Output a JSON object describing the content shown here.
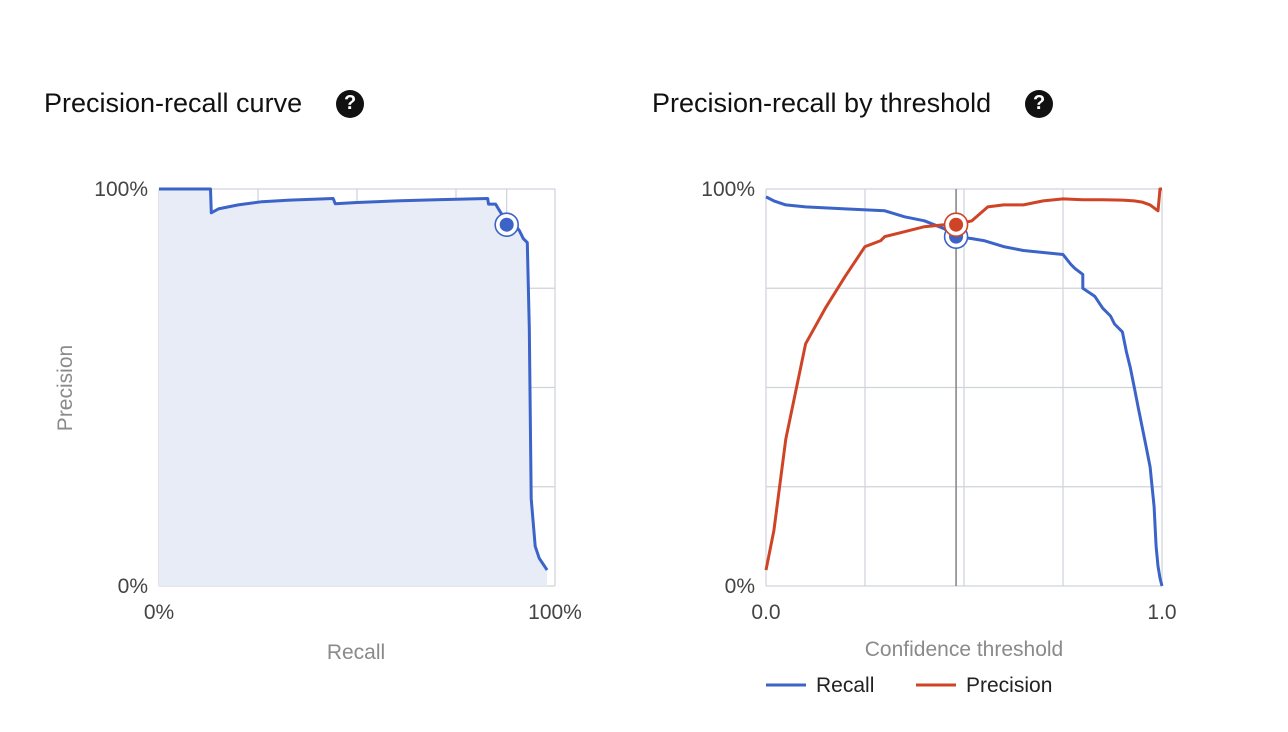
{
  "colors": {
    "recall": "#3b63c8",
    "precision": "#cf4426",
    "fill": "#e8ecf7",
    "grid": "#cfd3da",
    "marker": "#8a8a8a"
  },
  "left_panel": {
    "title": "Precision-recall curve",
    "help_icon": "question-circle-icon"
  },
  "right_panel": {
    "title": "Precision-recall by threshold",
    "help_icon": "question-circle-icon"
  },
  "chart_data": [
    {
      "type": "area",
      "xlabel": "Recall",
      "ylabel": "Precision",
      "xlim": [
        0,
        100
      ],
      "ylim": [
        0,
        100
      ],
      "x_tick_labels": [
        "0%",
        "100%"
      ],
      "y_tick_labels": [
        "0%",
        "100%"
      ],
      "grid": true,
      "series": [
        {
          "x": [
            0,
            13,
            13.2,
            15,
            20,
            26,
            33,
            44,
            44.5,
            50,
            60,
            70,
            83,
            83.2,
            85,
            86,
            87,
            87.8,
            89.5,
            91,
            92,
            93,
            93.5,
            94,
            95,
            96,
            98
          ],
          "y": [
            100,
            100,
            94,
            95,
            96,
            96.8,
            97.2,
            97.6,
            96.3,
            96.6,
            97,
            97.3,
            97.6,
            96.2,
            96.2,
            94.5,
            93,
            91,
            91.5,
            89.5,
            87.5,
            86.5,
            65,
            22,
            10,
            7,
            4
          ]
        }
      ],
      "highlight_point": {
        "x": 87.8,
        "y": 91
      }
    },
    {
      "type": "line",
      "xlabel": "Confidence threshold",
      "ylabel": "",
      "xlim": [
        0,
        1
      ],
      "ylim": [
        0,
        100
      ],
      "x_tick_labels": [
        "0.0",
        "1.0"
      ],
      "y_tick_labels": [
        "0%",
        "100%"
      ],
      "grid": true,
      "legend": "bottom",
      "threshold_marker": 0.48,
      "series": [
        {
          "name": "Recall",
          "color_key": "recall",
          "x": [
            0,
            0.02,
            0.05,
            0.1,
            0.2,
            0.3,
            0.35,
            0.4,
            0.45,
            0.48,
            0.52,
            0.55,
            0.6,
            0.65,
            0.7,
            0.75,
            0.77,
            0.78,
            0.8,
            0.8,
            0.83,
            0.85,
            0.87,
            0.88,
            0.9,
            0.91,
            0.92,
            0.93,
            0.94,
            0.95,
            0.96,
            0.97,
            0.975,
            0.98,
            0.985,
            0.99,
            0.995,
            1.0
          ],
          "y": [
            98,
            97,
            96,
            95.5,
            95,
            94.5,
            93,
            92,
            90,
            88,
            87.5,
            87,
            85.5,
            84.5,
            84,
            83.5,
            81,
            80,
            78.5,
            75,
            73,
            70,
            68,
            66,
            64,
            59,
            55,
            50,
            45,
            40,
            35,
            30,
            25,
            20,
            10,
            5,
            2,
            0
          ]
        },
        {
          "name": "Precision",
          "color_key": "precision",
          "x": [
            0,
            0.02,
            0.05,
            0.1,
            0.15,
            0.2,
            0.25,
            0.29,
            0.3,
            0.34,
            0.4,
            0.45,
            0.48,
            0.52,
            0.56,
            0.6,
            0.65,
            0.7,
            0.75,
            0.8,
            0.85,
            0.9,
            0.93,
            0.95,
            0.97,
            0.99,
            0.995,
            1.0
          ],
          "y": [
            4,
            14,
            37,
            61,
            70,
            78,
            85.5,
            87,
            88,
            89,
            90.5,
            91,
            91,
            92,
            95.5,
            96,
            96,
            97,
            97.5,
            97.3,
            97.3,
            97.2,
            97,
            96.7,
            96,
            94.5,
            100,
            100
          ]
        }
      ],
      "highlight_points": [
        {
          "series": "Recall",
          "x": 0.48,
          "y": 88
        },
        {
          "series": "Precision",
          "x": 0.48,
          "y": 91
        }
      ]
    }
  ]
}
